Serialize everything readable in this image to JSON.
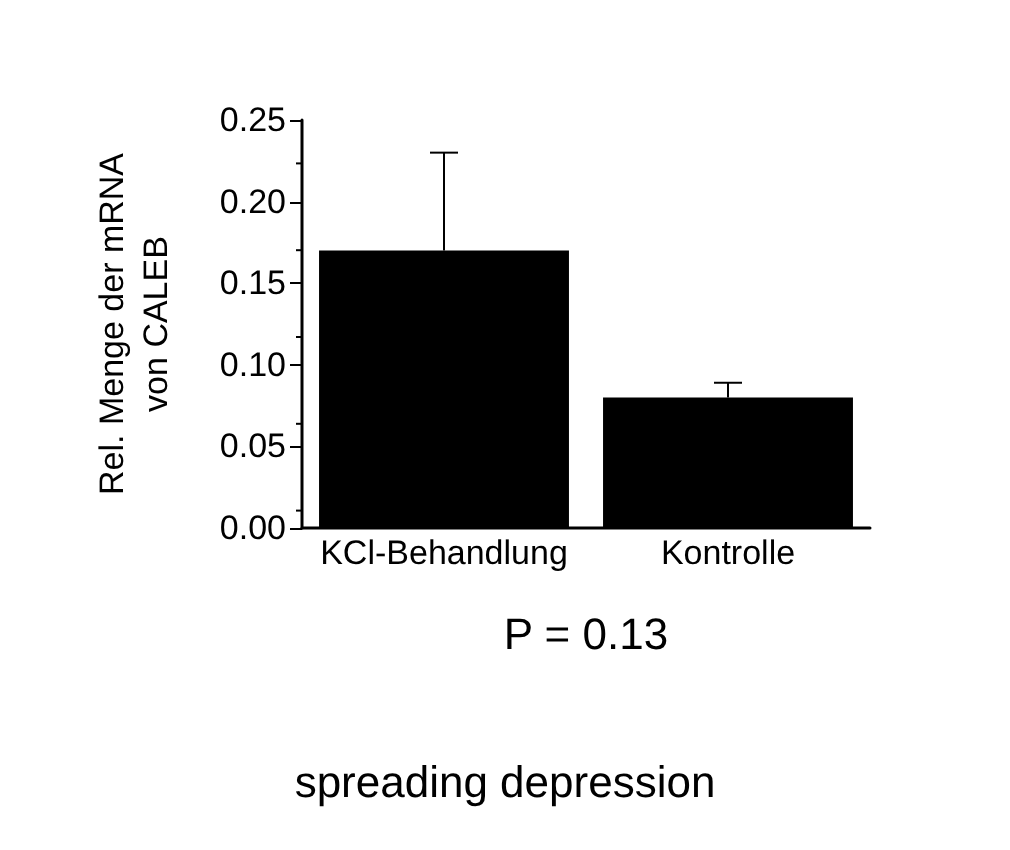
{
  "chart_data": {
    "type": "bar",
    "categories": [
      "KCl-Behandlung",
      "Kontrolle"
    ],
    "values": [
      0.17,
      0.08
    ],
    "color": "#000000",
    "errors": [
      [
        0.17,
        0.23
      ],
      [
        0.08,
        0.089
      ]
    ],
    "ylabel": "Rel. Menge der mRNA\nvon CALEB",
    "xlabel": "P = 0.13",
    "annotations": [
      "spreading depression"
    ],
    "ylim": [
      0,
      0.25
    ],
    "yticks": [
      {
        "value": 0,
        "label": "0.00"
      },
      {
        "value": 0.05,
        "label": "0.05"
      },
      {
        "value": 0.1,
        "label": "0.10"
      },
      {
        "value": 0.15,
        "label": "0.15"
      },
      {
        "value": 0.2,
        "label": "0.20"
      },
      {
        "value": 0.25,
        "label": "0.25"
      }
    ],
    "grid": false
  }
}
